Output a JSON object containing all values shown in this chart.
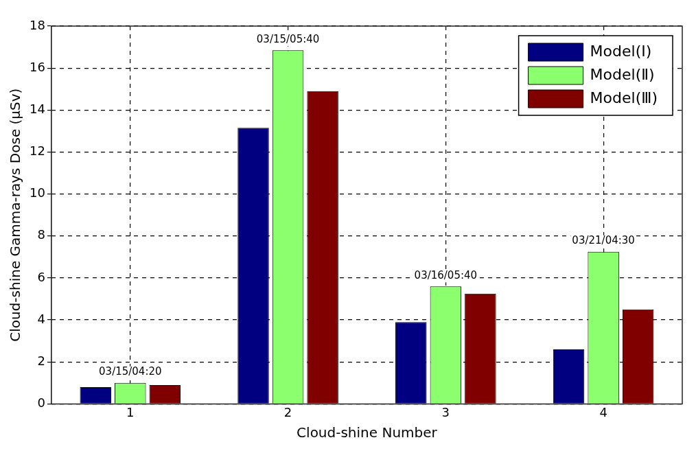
{
  "chart_data": {
    "type": "bar",
    "xlabel": "Cloud-shine Number",
    "ylabel": "Cloud-shine Gamma-rays Dose (μSv)",
    "categories": [
      "1",
      "2",
      "3",
      "4"
    ],
    "series": [
      {
        "name": "Model(Ⅰ)",
        "color": "#000080",
        "values": [
          0.8,
          13.15,
          3.9,
          2.6
        ]
      },
      {
        "name": "Model(Ⅱ)",
        "color": "#8cff6e",
        "values": [
          1.0,
          16.85,
          5.6,
          7.25
        ]
      },
      {
        "name": "Model(Ⅲ)",
        "color": "#800000",
        "values": [
          0.9,
          14.9,
          5.25,
          4.5
        ]
      }
    ],
    "ylim": [
      0,
      18
    ],
    "yticks": [
      0,
      2,
      4,
      6,
      8,
      10,
      12,
      14,
      16,
      18
    ],
    "grid": true,
    "legend": "top right",
    "annotations": [
      "03/15/04:20",
      "03/15/05:40",
      "03/16/05:40",
      "03/21/04:30"
    ]
  }
}
